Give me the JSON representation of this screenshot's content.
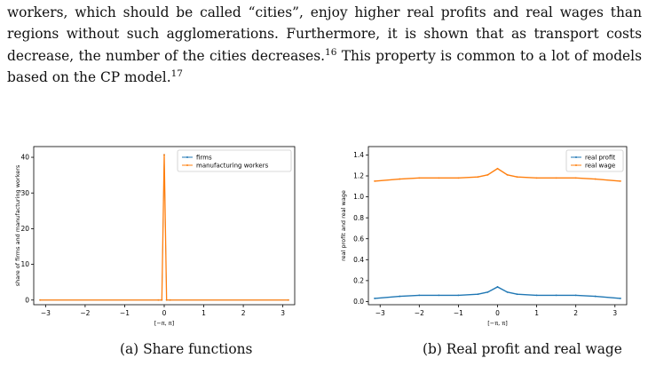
{
  "paragraph": {
    "seg1": "workers, which should be called “cities”, enjoy higher real profits and real wages than regions without such agglomerations. Furthermore, it is shown that as transport costs decrease, the number of the cities decreases.",
    "fn1": "16",
    "seg2": " This property is common to a lot of models based on the CP model.",
    "fn2": "17"
  },
  "colors": {
    "series1": "#1f77b4",
    "series2": "#ff7f0e"
  },
  "chart_data": [
    {
      "type": "line",
      "xlabel": "[−π, π]",
      "ylabel": "share of firms and manufacturing workers",
      "xlim": [
        -3.3,
        3.3
      ],
      "ylim": [
        -1.3,
        43
      ],
      "xticks": [
        -3,
        -2,
        -1,
        0,
        1,
        2,
        3
      ],
      "xtick_labels": [
        "−3",
        "−2",
        "−1",
        "0",
        "1",
        "2",
        "3"
      ],
      "yticks": [
        0,
        10,
        20,
        30,
        40
      ],
      "ytick_labels": [
        "0",
        "10",
        "20",
        "30",
        "40"
      ],
      "legend_position": "top-right",
      "grid": false,
      "series": [
        {
          "name": "firms",
          "x": [
            -3.14,
            -0.15,
            -0.06,
            0.0,
            0.06,
            0.15,
            3.14
          ],
          "y": [
            0,
            0,
            0,
            40.7,
            0,
            0,
            0
          ]
        },
        {
          "name": "manufacturing workers",
          "x": [
            -3.14,
            -0.15,
            -0.06,
            0.0,
            0.06,
            0.15,
            3.14
          ],
          "y": [
            0,
            0,
            0,
            40.7,
            0,
            0,
            0
          ]
        }
      ]
    },
    {
      "type": "line",
      "xlabel": "[−π, π]",
      "ylabel": "real profit and real wage",
      "xlim": [
        -3.3,
        3.3
      ],
      "ylim": [
        -0.03,
        1.48
      ],
      "xticks": [
        -3,
        -2,
        -1,
        0,
        1,
        2,
        3
      ],
      "xtick_labels": [
        "−3",
        "−2",
        "−1",
        "0",
        "1",
        "2",
        "3"
      ],
      "yticks": [
        0.0,
        0.2,
        0.4,
        0.6,
        0.8,
        1.0,
        1.2,
        1.4
      ],
      "ytick_labels": [
        "0.0",
        "0.2",
        "0.4",
        "0.6",
        "0.8",
        "1.0",
        "1.2",
        "1.4"
      ],
      "legend_position": "top-right",
      "grid": false,
      "series": [
        {
          "name": "real profit",
          "x": [
            -3.14,
            -2.5,
            -2.0,
            -1.5,
            -1.0,
            -0.5,
            -0.25,
            0.0,
            0.25,
            0.5,
            1.0,
            1.5,
            2.0,
            2.5,
            3.14
          ],
          "y": [
            0.03,
            0.05,
            0.06,
            0.06,
            0.06,
            0.07,
            0.09,
            0.14,
            0.09,
            0.07,
            0.06,
            0.06,
            0.06,
            0.05,
            0.03
          ]
        },
        {
          "name": "real  wage",
          "x": [
            -3.14,
            -2.5,
            -2.0,
            -1.5,
            -1.0,
            -0.5,
            -0.25,
            0.0,
            0.25,
            0.5,
            1.0,
            1.5,
            2.0,
            2.5,
            3.14
          ],
          "y": [
            1.15,
            1.17,
            1.18,
            1.18,
            1.18,
            1.19,
            1.21,
            1.27,
            1.21,
            1.19,
            1.18,
            1.18,
            1.18,
            1.17,
            1.15
          ]
        }
      ]
    }
  ],
  "captions": {
    "a": "(a) Share functions",
    "b": "(b) Real profit and real wage"
  }
}
